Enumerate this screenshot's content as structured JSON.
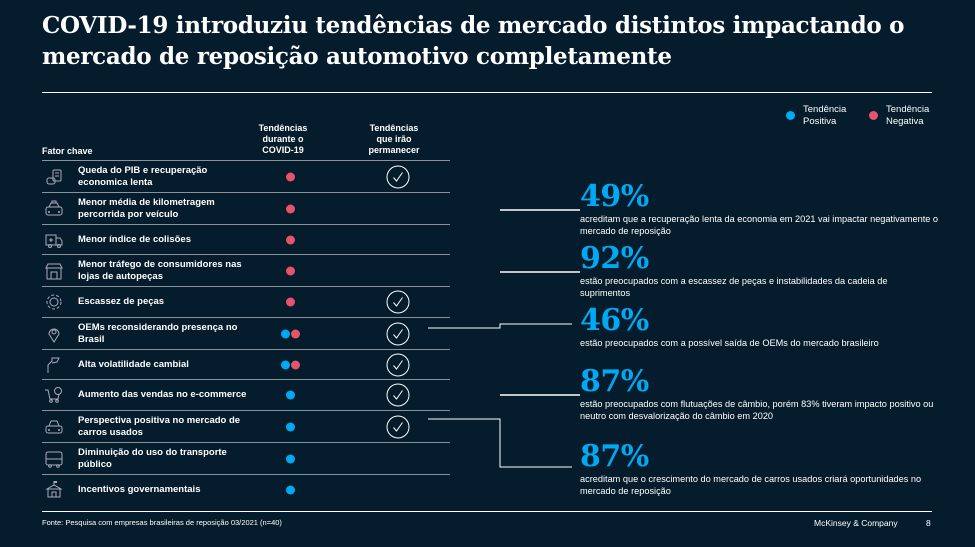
{
  "title": "COVID-19 introduziu tendências de mercado distintos impactando o mercado de reposição automotivo completamente",
  "colors": {
    "background": "#051c2c",
    "positive": "#00a9f4",
    "negative": "#e5546c",
    "text": "#ffffff",
    "rule": "#8a939b"
  },
  "legend": [
    {
      "label": "Tendência Positiva",
      "color": "#00a9f4"
    },
    {
      "label": "Tendência Negativa",
      "color": "#e5546c"
    }
  ],
  "table": {
    "headers": {
      "factor": "Fator chave",
      "during": "Tendências durante o COVID-19",
      "remain": "Tendências que irão permanecer"
    },
    "rows": [
      {
        "icon": "coins-icon",
        "label": "Queda do PIB e recuperação economica lenta",
        "during": [
          "negative"
        ],
        "remain": true
      },
      {
        "icon": "taxi-icon",
        "label": "Menor média de kilometragem percorrida por veículo",
        "during": [
          "negative"
        ],
        "remain": false
      },
      {
        "icon": "ambulance-icon",
        "label": "Menor índice de colisões",
        "during": [
          "negative"
        ],
        "remain": false
      },
      {
        "icon": "store-icon",
        "label": "Menor tráfego de consumidores nas lojas de autopeças",
        "during": [
          "negative"
        ],
        "remain": false
      },
      {
        "icon": "gear-icon",
        "label": "Escassez de peças",
        "during": [
          "negative"
        ],
        "remain": true
      },
      {
        "icon": "location-pin-icon",
        "label": "OEMs reconsiderando presença no Brasil",
        "during": [
          "positive",
          "negative"
        ],
        "remain": true
      },
      {
        "icon": "flag-icon",
        "label": "Alta volatilidade cambial",
        "during": [
          "positive",
          "negative"
        ],
        "remain": true
      },
      {
        "icon": "shopping-cart-icon",
        "label": "Aumento das vendas no e-commerce",
        "during": [
          "positive"
        ],
        "remain": true
      },
      {
        "icon": "car-icon",
        "label": "Perspectiva positiva no mercado de carros usados",
        "during": [
          "positive"
        ],
        "remain": true
      },
      {
        "icon": "bus-icon",
        "label": "Diminuição do uso do transporte público",
        "during": [
          "positive"
        ],
        "remain": false
      },
      {
        "icon": "government-building-icon",
        "label": "Incentivos governamentais",
        "during": [
          "positive"
        ],
        "remain": false
      }
    ]
  },
  "stats": [
    {
      "value": "49%",
      "text": "acreditam que a recuperação lenta da economia em 2021 vai impactar negativamente o mercado de reposição"
    },
    {
      "value": "92%",
      "text": "estão preocupados com a escassez de peças e instabilidades da cadeia de suprimentos"
    },
    {
      "value": "46%",
      "text": "estão preocupados com a possível saída de OEMs do mercado brasileiro"
    },
    {
      "value": "87%",
      "text": "estão preocupados com flutuações de câmbio, porém 83% tiveram impacto positivo ou neutro com desvalorização do câmbio em 2020"
    },
    {
      "value": "87%",
      "text": "acreditam que o crescimento do mercado de carros usados criará oportunidades no mercado de reposição"
    }
  ],
  "footer": {
    "source": "Fonte: Pesquisa com empresas brasileiras de reposição 03/2021 (n=40)",
    "brand": "McKinsey & Company",
    "page": "8"
  }
}
